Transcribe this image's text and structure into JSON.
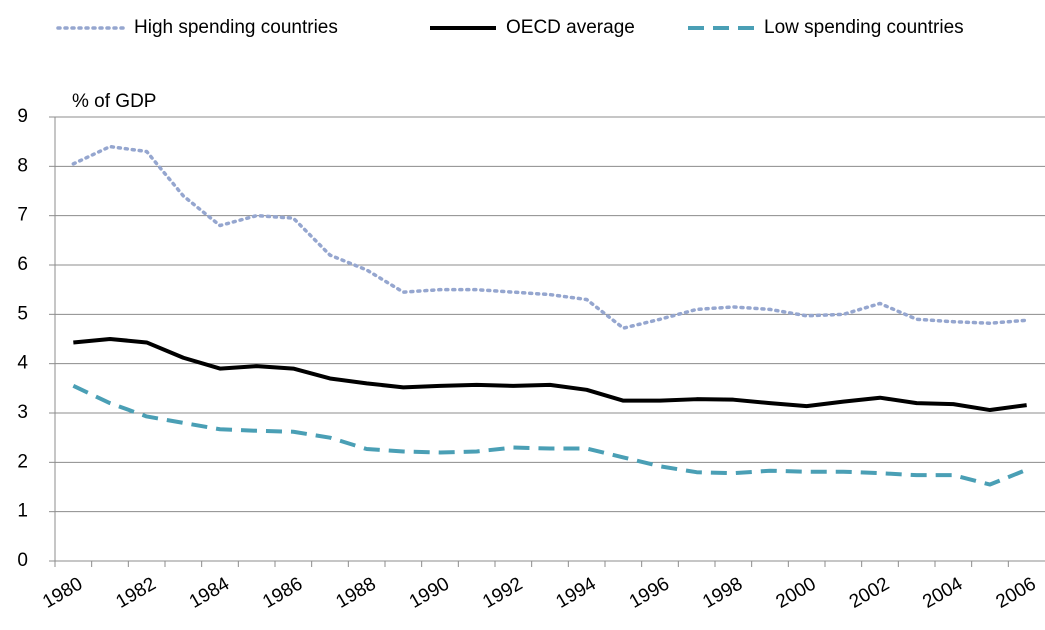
{
  "chart_data": {
    "type": "line",
    "y_label": "% of GDP",
    "categories": [
      "1980",
      null,
      "1982",
      null,
      "1984",
      null,
      "1986",
      null,
      "1988",
      null,
      "1990",
      null,
      "1992",
      null,
      "1994",
      null,
      "1996",
      null,
      "1998",
      null,
      "2000",
      null,
      "2002",
      null,
      "2004",
      null,
      "2006"
    ],
    "series": [
      {
        "name": "High spending countries",
        "color": "#95a6cf",
        "style": "dotted",
        "values": [
          8.05,
          8.4,
          8.3,
          7.4,
          6.8,
          7.0,
          6.95,
          6.2,
          5.9,
          5.45,
          5.5,
          5.5,
          5.45,
          5.4,
          5.3,
          4.72,
          4.9,
          5.1,
          5.15,
          5.1,
          4.97,
          5.0,
          5.22,
          4.9,
          4.85,
          4.82,
          4.88
        ]
      },
      {
        "name": "OECD average",
        "color": "#000000",
        "style": "solid",
        "values": [
          4.43,
          4.5,
          4.43,
          4.12,
          3.9,
          3.95,
          3.9,
          3.7,
          3.6,
          3.52,
          3.55,
          3.57,
          3.55,
          3.57,
          3.47,
          3.25,
          3.25,
          3.28,
          3.27,
          3.2,
          3.14,
          3.23,
          3.31,
          3.2,
          3.18,
          3.06,
          3.16
        ]
      },
      {
        "name": "Low spending countries",
        "color": "#4a9fb5",
        "style": "dashed",
        "values": [
          3.55,
          3.2,
          2.93,
          2.8,
          2.67,
          2.64,
          2.62,
          2.5,
          2.27,
          2.22,
          2.2,
          2.22,
          2.3,
          2.28,
          2.28,
          2.1,
          1.92,
          1.8,
          1.78,
          1.83,
          1.81,
          1.81,
          1.78,
          1.74,
          1.74,
          1.55,
          1.85
        ]
      }
    ],
    "ylim": [
      0,
      9
    ],
    "yticks": [
      0,
      1,
      2,
      3,
      4,
      5,
      6,
      7,
      8,
      9
    ],
    "grid": true,
    "legend": "top"
  }
}
